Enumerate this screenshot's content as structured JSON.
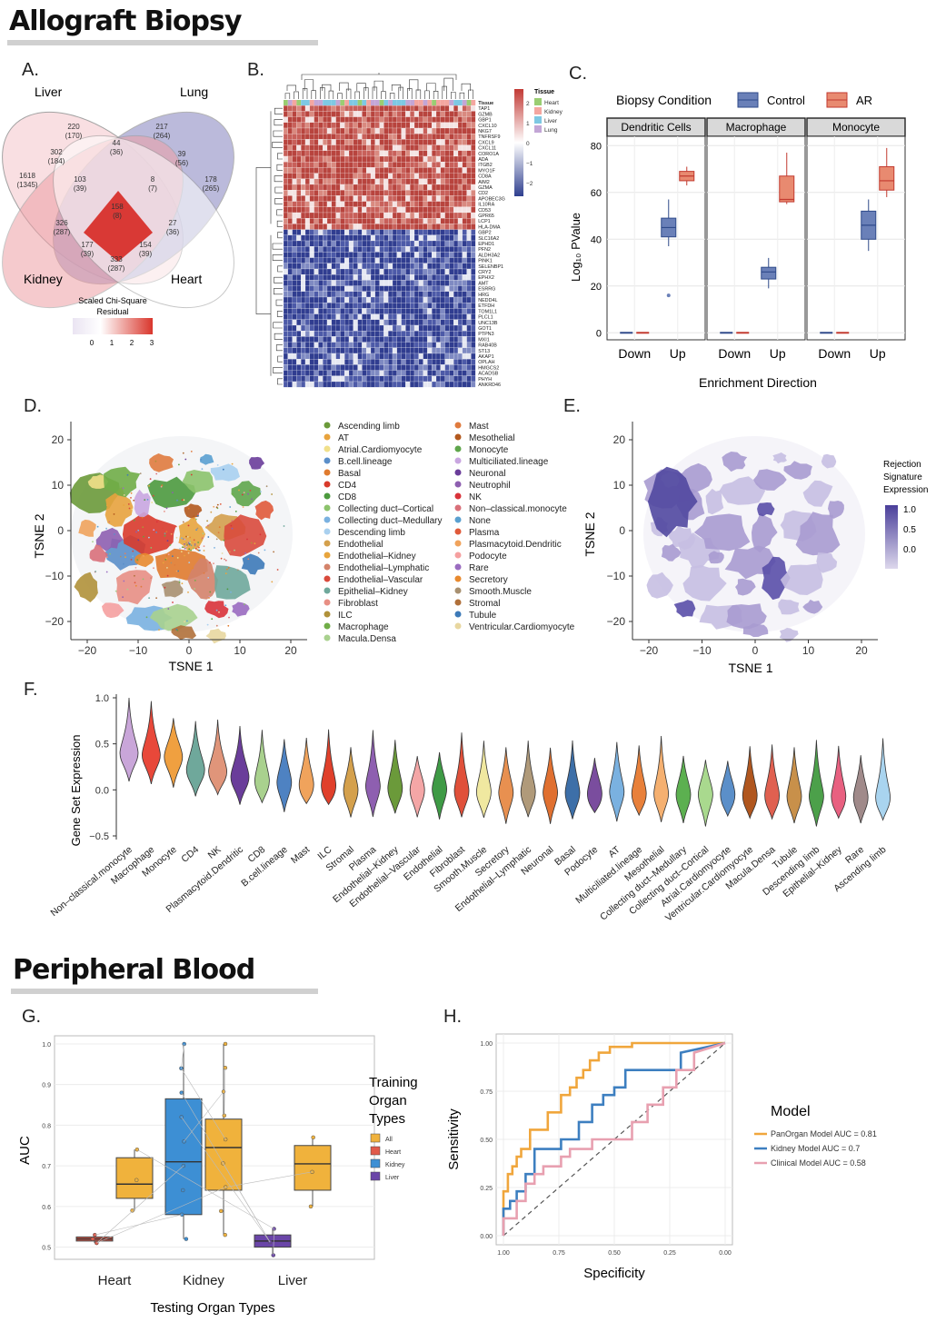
{
  "sections": {
    "allograft": "Allograft Biopsy",
    "blood": "Peripheral Blood"
  },
  "panels": {
    "A": "A.",
    "B": "B.",
    "C": "C.",
    "D": "D.",
    "E": "E.",
    "F": "F.",
    "G": "G.",
    "H": "H."
  },
  "venn": {
    "sets": [
      "Liver",
      "Lung",
      "Kidney",
      "Heart"
    ],
    "regions": [
      {
        "top": "220",
        "bottom": "(170)"
      },
      {
        "top": "217",
        "bottom": "(264)"
      },
      {
        "top": "44",
        "bottom": "(36)"
      },
      {
        "top": "302",
        "bottom": "(184)"
      },
      {
        "top": "39",
        "bottom": "(56)"
      },
      {
        "top": "1618",
        "bottom": "(1345)"
      },
      {
        "top": "103",
        "bottom": "(39)"
      },
      {
        "top": "8",
        "bottom": "(7)"
      },
      {
        "top": "178",
        "bottom": "(265)"
      },
      {
        "top": "158",
        "bottom": "(8)"
      },
      {
        "top": "326",
        "bottom": "(287)"
      },
      {
        "top": "27",
        "bottom": "(36)"
      },
      {
        "top": "177",
        "bottom": "(39)"
      },
      {
        "top": "154",
        "bottom": "(39)"
      },
      {
        "top": "333",
        "bottom": "(287)"
      }
    ],
    "scale_title": [
      "Scaled Chi-Square",
      "Residual"
    ],
    "scale_ticks": [
      "0",
      "1",
      "2",
      "3"
    ]
  },
  "heatmap": {
    "genes": [
      "Tissue",
      "TAP1",
      "GZMB",
      "GBP1",
      "CXCL10",
      "NKG7",
      "TNFRSF9",
      "CXCL9",
      "CXCL11",
      "CORO1A",
      "ADA",
      "ITGB2",
      "MYO1F",
      "CD8A",
      "AIM2",
      "GZMA",
      "CD2",
      "APOBEC3G",
      "IL10RA",
      "CD53",
      "GPR65",
      "LCP1",
      "HLA-DMA",
      "GBP2",
      "SLC16A2",
      "EPHD1",
      "PFN2",
      "ALDH3A2",
      "PINK1",
      "SELENBP1",
      "CRY2",
      "EPHX2",
      "AMT",
      "ESRRG",
      "HRG",
      "NEDD4L",
      "ETFDH",
      "TOM1L1",
      "PLCL1",
      "UNC13B",
      "GOT1",
      "PTPN3",
      "MXI1",
      "RAB40B",
      "ST13",
      "AKAP1",
      "OPLAH",
      "HMGCS2",
      "ACADSB",
      "PHYH",
      "ANKRD46"
    ],
    "legend_title": "Tissue",
    "legend_items": [
      {
        "label": "Heart",
        "color": "#9acd72"
      },
      {
        "label": "Kidney",
        "color": "#f4a6a0"
      },
      {
        "label": "Liver",
        "color": "#7ec8e3"
      },
      {
        "label": "Lung",
        "color": "#c3a6d6"
      }
    ],
    "scale_ticks": [
      "2",
      "1",
      "0",
      "−1",
      "−2"
    ]
  },
  "boxplot_c": {
    "legend_title": "Biopsy Condition",
    "legend_items": [
      "Control",
      "AR"
    ],
    "facets": [
      "Dendritic Cells",
      "Macrophage",
      "Monocyte"
    ],
    "ylabel": "Log₁₀ PValue",
    "xlabel": "Enrichment Direction",
    "xticks": [
      "Down",
      "Up"
    ],
    "yticks": [
      "0",
      "20",
      "40",
      "60",
      "80"
    ]
  },
  "tsne_d": {
    "xlabel": "TSNE 1",
    "ylabel": "TSNE 2",
    "xticks": [
      "−20",
      "−10",
      "0",
      "10",
      "20"
    ],
    "yticks": [
      "20",
      "10",
      "0",
      "−10",
      "−20"
    ],
    "legend": [
      {
        "label": "Ascending limb",
        "color": "#6b9a3a"
      },
      {
        "label": "AT",
        "color": "#e8a33d"
      },
      {
        "label": "Atrial.Cardiomyocyte",
        "color": "#f1e08a"
      },
      {
        "label": "B.cell.lineage",
        "color": "#5b8fc9"
      },
      {
        "label": "Basal",
        "color": "#e07b2e"
      },
      {
        "label": "CD4",
        "color": "#d93a2b"
      },
      {
        "label": "CD8",
        "color": "#4c9a3e"
      },
      {
        "label": "Collecting duct–Cortical",
        "color": "#8cc36c"
      },
      {
        "label": "Collecting duct–Medullary",
        "color": "#7ab1e0"
      },
      {
        "label": "Descending limb",
        "color": "#a9d0ef"
      },
      {
        "label": "Endothelial",
        "color": "#d4a04c"
      },
      {
        "label": "Endothelial–Kidney",
        "color": "#e8a53c"
      },
      {
        "label": "Endothelial–Lymphatic",
        "color": "#d4836a"
      },
      {
        "label": "Endothelial–Vascular",
        "color": "#d94a3c"
      },
      {
        "label": "Epithelial–Kidney",
        "color": "#6fa89b"
      },
      {
        "label": "Fibroblast",
        "color": "#e88f84"
      },
      {
        "label": "ILC",
        "color": "#b0913a"
      },
      {
        "label": "Macrophage",
        "color": "#70ad47"
      },
      {
        "label": "Macula.Densa",
        "color": "#a9d18e"
      },
      {
        "label": "Mast",
        "color": "#e07b3e"
      },
      {
        "label": "Mesothelial",
        "color": "#b3591e"
      },
      {
        "label": "Monocyte",
        "color": "#5fa64b"
      },
      {
        "label": "Multiciliated.lineage",
        "color": "#c9a6e0"
      },
      {
        "label": "Neuronal",
        "color": "#6a3d9a"
      },
      {
        "label": "Neutrophil",
        "color": "#8e5fb0"
      },
      {
        "label": "NK",
        "color": "#d9333a"
      },
      {
        "label": "Non–classical.monocyte",
        "color": "#d9707a"
      },
      {
        "label": "None",
        "color": "#5aa0d0"
      },
      {
        "label": "Plasma",
        "color": "#e05a3a"
      },
      {
        "label": "Plasmacytoid.Dendritic",
        "color": "#f0a35c"
      },
      {
        "label": "Podocyte",
        "color": "#f5a0a0"
      },
      {
        "label": "Rare",
        "color": "#9a6cc0"
      },
      {
        "label": "Secretory",
        "color": "#e8892e"
      },
      {
        "label": "Smooth.Muscle",
        "color": "#a89070"
      },
      {
        "label": "Stromal",
        "color": "#b0703a"
      },
      {
        "label": "Tubule",
        "color": "#3d7ab8"
      },
      {
        "label": "Ventricular.Cardiomyocyte",
        "color": "#e8d7a0"
      }
    ]
  },
  "tsne_e": {
    "xlabel": "TSNE 1",
    "ylabel": "TSNE 2",
    "xticks": [
      "−20",
      "−10",
      "0",
      "10",
      "20"
    ],
    "yticks": [
      "20",
      "10",
      "0",
      "−10",
      "−20"
    ],
    "legend_title": [
      "Rejection",
      "Signature",
      "Expression"
    ],
    "legend_ticks": [
      "1.0",
      "0.5",
      "0.0"
    ]
  },
  "violin_f": {
    "ylabel": "Gene Set Expression",
    "yticks": [
      "1.0",
      "0.5",
      "0.0",
      "−0.5"
    ],
    "categories": [
      {
        "label": "Non–classical.monocyte",
        "color": "#c9a6d9",
        "median": 0.4
      },
      {
        "label": "Macrophage",
        "color": "#e8483a",
        "median": 0.38
      },
      {
        "label": "Monocyte",
        "color": "#f0a040",
        "median": 0.36
      },
      {
        "label": "CD4",
        "color": "#6fa89b",
        "median": 0.22
      },
      {
        "label": "NK",
        "color": "#e0957a",
        "median": 0.2
      },
      {
        "label": "Plasmacytoid.Dendritic",
        "color": "#6a3d9a",
        "median": 0.14
      },
      {
        "label": "CD8",
        "color": "#a9d18e",
        "median": 0.1
      },
      {
        "label": "B.cell.lineage",
        "color": "#4e82c2",
        "median": 0.08
      },
      {
        "label": "Mast",
        "color": "#f0a35c",
        "median": 0.06
      },
      {
        "label": "ILC",
        "color": "#e0402b",
        "median": 0.05
      },
      {
        "label": "Stromal",
        "color": "#d4a04c",
        "median": 0.0
      },
      {
        "label": "Plasma",
        "color": "#8e5fb0",
        "median": 0.04
      },
      {
        "label": "Endothelial–Kidney",
        "color": "#6b9a3a",
        "median": 0.02
      },
      {
        "label": "Endothelial–Vascular",
        "color": "#f4a6a6",
        "median": 0.0
      },
      {
        "label": "Endothelial",
        "color": "#3e9a45",
        "median": 0.01
      },
      {
        "label": "Fibroblast",
        "color": "#e0503a",
        "median": -0.01
      },
      {
        "label": "Smooth.Muscle",
        "color": "#f0e8a0",
        "median": -0.02
      },
      {
        "label": "Secretory",
        "color": "#e89050",
        "median": -0.03
      },
      {
        "label": "Endothelial–Lymphatic",
        "color": "#b09a7a",
        "median": -0.02
      },
      {
        "label": "Neuronal",
        "color": "#e07030",
        "median": -0.03
      },
      {
        "label": "Basal",
        "color": "#3d6fa8",
        "median": -0.03
      },
      {
        "label": "Podocyte",
        "color": "#7a4d9e",
        "median": -0.04
      },
      {
        "label": "AT",
        "color": "#7ab1e0",
        "median": -0.02
      },
      {
        "label": "Multiciliated.lineage",
        "color": "#e8803a",
        "median": -0.04
      },
      {
        "label": "Mesothelial",
        "color": "#f5b070",
        "median": -0.04
      },
      {
        "label": "Collecting duct–Medullary",
        "color": "#5cb050",
        "median": -0.05
      },
      {
        "label": "Collecting duct–Cortical",
        "color": "#a9d98e",
        "median": -0.05
      },
      {
        "label": "Atrial.Cardiomyocyte",
        "color": "#5b8fc9",
        "median": -0.05
      },
      {
        "label": "Ventricular.Cardiomyocyte",
        "color": "#b0561e",
        "median": -0.06
      },
      {
        "label": "Macula.Densa",
        "color": "#e06050",
        "median": -0.06
      },
      {
        "label": "Tubule",
        "color": "#c8904a",
        "median": -0.07
      },
      {
        "label": "Descending limb",
        "color": "#4ca04a",
        "median": -0.07
      },
      {
        "label": "Epithelial–Kidney",
        "color": "#e86080",
        "median": -0.07
      },
      {
        "label": "Rare",
        "color": "#a08a8a",
        "median": -0.08
      },
      {
        "label": "Ascending limb",
        "color": "#a9d4ef",
        "median": -0.08
      }
    ]
  },
  "box_g": {
    "ylabel": "AUC",
    "xlabel": "Testing Organ Types",
    "xticks": [
      "Heart",
      "Kidney",
      "Liver"
    ],
    "yticks": [
      "1.0",
      "0.9",
      "0.8",
      "0.7",
      "0.6",
      "0.5"
    ],
    "legend_title": [
      "Training",
      "Organ",
      "Types"
    ],
    "legend_items": [
      {
        "label": "All",
        "color": "#f0b23c"
      },
      {
        "label": "Heart",
        "color": "#e05a4a"
      },
      {
        "label": "Kidney",
        "color": "#3d8fd4"
      },
      {
        "label": "Liver",
        "color": "#6a45a8"
      }
    ],
    "boxes": [
      {
        "group": "Heart",
        "train": "Heart",
        "min": 0.51,
        "q1": 0.515,
        "med": 0.52,
        "q3": 0.525,
        "max": 0.53
      },
      {
        "group": "Heart",
        "train": "All",
        "min": 0.59,
        "q1": 0.62,
        "med": 0.655,
        "q3": 0.72,
        "max": 0.74
      },
      {
        "group": "Kidney",
        "train": "Kidney",
        "min": 0.52,
        "q1": 0.58,
        "med": 0.71,
        "q3": 0.865,
        "max": 1.0
      },
      {
        "group": "Kidney",
        "train": "All",
        "min": 0.53,
        "q1": 0.64,
        "med": 0.745,
        "q3": 0.815,
        "max": 1.0
      },
      {
        "group": "Liver",
        "train": "Liver",
        "min": 0.48,
        "q1": 0.5,
        "med": 0.515,
        "q3": 0.53,
        "max": 0.545
      },
      {
        "group": "Liver",
        "train": "All",
        "min": 0.6,
        "q1": 0.64,
        "med": 0.705,
        "q3": 0.75,
        "max": 0.77
      }
    ]
  },
  "roc_h": {
    "ylabel": "Sensitivity",
    "xlabel": "Specificity",
    "xticks": [
      "1.00",
      "0.75",
      "0.50",
      "0.25",
      "0.00"
    ],
    "yticks": [
      "1.00",
      "0.75",
      "0.50",
      "0.25",
      "0.00"
    ],
    "legend_title": "Model",
    "legend_items": [
      {
        "label": "PanOrgan Model   AUC = 0.81",
        "color": "#f0a63c"
      },
      {
        "label": "Kidney Model   AUC = 0.7",
        "color": "#3d7fc0"
      },
      {
        "label": "Clinical Model   AUC = 0.58",
        "color": "#e8a0b0"
      }
    ]
  },
  "chart_data": [
    {
      "type": "bar",
      "title": "",
      "categories": [
        "Dendritic Cells Control",
        "Dendritic Cells AR",
        "Macrophage Control",
        "Macrophage AR",
        "Monocyte Control",
        "Monocyte AR"
      ],
      "values": [
        45,
        67,
        26,
        58,
        46,
        65
      ],
      "ylabel": "Log₁₀ PValue",
      "ylim": [
        0,
        80
      ]
    },
    {
      "type": "line",
      "title": "",
      "xlabel": "Specificity",
      "ylabel": "Sensitivity",
      "series": [
        {
          "name": "PanOrgan Model   AUC = 0.81",
          "x": [
            1.0,
            1.0,
            0.98,
            0.98,
            0.96,
            0.96,
            0.94,
            0.94,
            0.92,
            0.92,
            0.88,
            0.88,
            0.8,
            0.8,
            0.74,
            0.74,
            0.7,
            0.7,
            0.67,
            0.67,
            0.64,
            0.64,
            0.61,
            0.61,
            0.57,
            0.57,
            0.52,
            0.52,
            0.42,
            0.42,
            0.3,
            0.3,
            0.0
          ],
          "y": [
            0.0,
            0.23,
            0.23,
            0.32,
            0.32,
            0.36,
            0.36,
            0.41,
            0.41,
            0.45,
            0.45,
            0.55,
            0.55,
            0.64,
            0.64,
            0.73,
            0.73,
            0.77,
            0.77,
            0.82,
            0.82,
            0.86,
            0.86,
            0.91,
            0.91,
            0.95,
            0.95,
            0.98,
            0.98,
            1.0,
            1.0,
            1.0,
            1.0
          ]
        },
        {
          "name": "Kidney Model   AUC = 0.7",
          "x": [
            1.0,
            1.0,
            0.97,
            0.97,
            0.94,
            0.94,
            0.9,
            0.9,
            0.86,
            0.86,
            0.74,
            0.74,
            0.66,
            0.66,
            0.6,
            0.6,
            0.55,
            0.55,
            0.5,
            0.5,
            0.45,
            0.45,
            0.2,
            0.2,
            0.0
          ],
          "y": [
            0.0,
            0.14,
            0.14,
            0.18,
            0.18,
            0.23,
            0.23,
            0.32,
            0.32,
            0.45,
            0.45,
            0.5,
            0.5,
            0.59,
            0.59,
            0.68,
            0.68,
            0.73,
            0.73,
            0.77,
            0.77,
            0.86,
            0.86,
            0.95,
            1.0
          ]
        },
        {
          "name": "Clinical Model   AUC = 0.58",
          "x": [
            1.0,
            1.0,
            0.94,
            0.94,
            0.9,
            0.9,
            0.86,
            0.86,
            0.82,
            0.82,
            0.74,
            0.74,
            0.7,
            0.7,
            0.6,
            0.6,
            0.42,
            0.42,
            0.35,
            0.35,
            0.28,
            0.28,
            0.22,
            0.22,
            0.14,
            0.14,
            0.0
          ],
          "y": [
            0.0,
            0.09,
            0.09,
            0.18,
            0.18,
            0.27,
            0.27,
            0.32,
            0.32,
            0.36,
            0.36,
            0.41,
            0.41,
            0.45,
            0.45,
            0.5,
            0.5,
            0.59,
            0.59,
            0.68,
            0.68,
            0.77,
            0.77,
            0.86,
            0.86,
            0.95,
            1.0
          ]
        }
      ],
      "xlim": [
        1.0,
        0.0
      ],
      "ylim": [
        0.0,
        1.0
      ]
    }
  ]
}
